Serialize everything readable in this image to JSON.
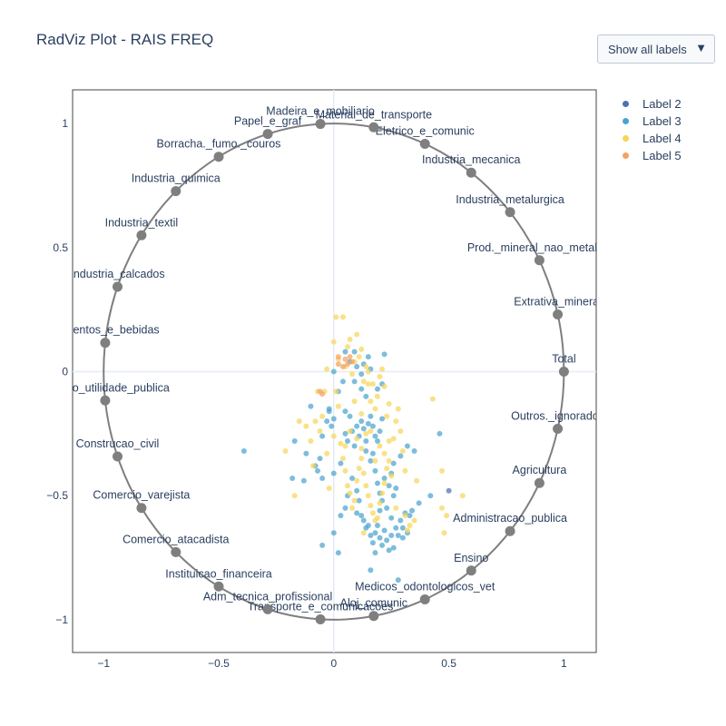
{
  "title": "RadViz Plot - RAIS FREQ",
  "dropdown": {
    "label": "Show all labels",
    "arrow": "▼"
  },
  "chart_data": {
    "type": "scatter",
    "title": "RadViz Plot - RAIS FREQ",
    "xlim": [
      -1.14,
      1.14
    ],
    "ylim": [
      -1.14,
      1.14
    ],
    "x_ticks": [
      -1,
      -0.5,
      0,
      0.5,
      1
    ],
    "y_ticks": [
      -1,
      -0.5,
      0,
      0.5,
      1
    ],
    "x_tick_labels": [
      "−1",
      "−0.5",
      "0",
      "0.5",
      "1"
    ],
    "y_tick_labels": [
      "−1",
      "−0.5",
      "0",
      "0.5",
      "1"
    ],
    "grid": true,
    "legend_position": "top-right",
    "anchors": [
      {
        "name": "Total",
        "angle": 0
      },
      {
        "name": "Extrativa_mineral",
        "angle": 13.33
      },
      {
        "name": "Prod._mineral_nao_metalico",
        "angle": 26.67
      },
      {
        "name": "Industria_metalurgica",
        "angle": 40
      },
      {
        "name": "Industria_mecanica",
        "angle": 53.33
      },
      {
        "name": "Eletrico_e_comunic",
        "angle": 66.67
      },
      {
        "name": "Material_de_transporte",
        "angle": 80
      },
      {
        "name": "Madeira_e_mobiliario",
        "angle": 93.33
      },
      {
        "name": "Papel_e_graf",
        "angle": 106.67
      },
      {
        "name": "Borracha._fumo._couros",
        "angle": 120
      },
      {
        "name": "Industria_quimica",
        "angle": 133.33
      },
      {
        "name": "Industria_textil",
        "angle": 146.67
      },
      {
        "name": "Industria_calcados",
        "angle": 160
      },
      {
        "name": "Alimentos_e_bebidas",
        "angle": 173.33
      },
      {
        "name": "Servico_utilidade_publica",
        "angle": 186.67
      },
      {
        "name": "Construcao_civil",
        "angle": 200
      },
      {
        "name": "Comercio_varejista",
        "angle": 213.33
      },
      {
        "name": "Comercio_atacadista",
        "angle": 226.67
      },
      {
        "name": "Instituicao_financeira",
        "angle": 240
      },
      {
        "name": "Adm_tecnica_profissional",
        "angle": 253.33
      },
      {
        "name": "Transporte_e_comunicacoes",
        "angle": 266.67
      },
      {
        "name": "Aloj_comunic",
        "angle": 280
      },
      {
        "name": "Medicos_odontologicos_vet",
        "angle": 293.33
      },
      {
        "name": "Ensino",
        "angle": 306.67
      },
      {
        "name": "Administracao_publica",
        "angle": 320
      },
      {
        "name": "Agricultura",
        "angle": 333.33
      },
      {
        "name": "Outros._ignorados",
        "angle": 346.67
      }
    ],
    "series": [
      {
        "name": "Label 2",
        "color": "#4c72b0",
        "points": [
          [
            0.5,
            -0.48
          ]
        ]
      },
      {
        "name": "Label 3",
        "color": "#4ba3cf",
        "points": [
          [
            -0.39,
            -0.32
          ],
          [
            -0.17,
            -0.28
          ],
          [
            -0.18,
            -0.43
          ],
          [
            -0.12,
            -0.33
          ],
          [
            -0.13,
            -0.44
          ],
          [
            -0.08,
            -0.38
          ],
          [
            -0.07,
            -0.4
          ],
          [
            -0.05,
            -0.43
          ],
          [
            -0.06,
            -0.35
          ],
          [
            -0.05,
            -0.26
          ],
          [
            -0.03,
            -0.2
          ],
          [
            -0.02,
            -0.15
          ],
          [
            -0.01,
            -0.22
          ],
          [
            0,
            -0.19
          ],
          [
            0.0,
            -0.0
          ],
          [
            0.02,
            -0.08
          ],
          [
            0.05,
            -0.16
          ],
          [
            0.05,
            -0.25
          ],
          [
            0.06,
            -0.28
          ],
          [
            0.07,
            -0.18
          ],
          [
            0.08,
            -0.24
          ],
          [
            0.09,
            -0.3
          ],
          [
            0.1,
            -0.22
          ],
          [
            0.11,
            -0.26
          ],
          [
            0.12,
            -0.2
          ],
          [
            0.13,
            -0.23
          ],
          [
            0.14,
            -0.28
          ],
          [
            0.15,
            -0.21
          ],
          [
            0.16,
            -0.18
          ],
          [
            0.17,
            -0.22
          ],
          [
            0.18,
            -0.26
          ],
          [
            0.19,
            -0.28
          ],
          [
            0.2,
            -0.24
          ],
          [
            0.21,
            -0.19
          ],
          [
            0.14,
            -0.32
          ],
          [
            0.16,
            -0.36
          ],
          [
            0.17,
            -0.33
          ],
          [
            0.18,
            -0.4
          ],
          [
            0.19,
            -0.45
          ],
          [
            0.2,
            -0.49
          ],
          [
            0.21,
            -0.52
          ],
          [
            0.22,
            -0.43
          ],
          [
            0.24,
            -0.46
          ],
          [
            0.25,
            -0.41
          ],
          [
            0.26,
            -0.37
          ],
          [
            0.27,
            -0.47
          ],
          [
            0.29,
            -0.34
          ],
          [
            0.32,
            -0.3
          ],
          [
            0.08,
            -0.43
          ],
          [
            0.1,
            -0.48
          ],
          [
            0.11,
            -0.52
          ],
          [
            0.12,
            -0.58
          ],
          [
            0.13,
            -0.6
          ],
          [
            0.14,
            -0.63
          ],
          [
            0.15,
            -0.62
          ],
          [
            0.16,
            -0.66
          ],
          [
            0.17,
            -0.69
          ],
          [
            0.18,
            -0.65
          ],
          [
            0.19,
            -0.62
          ],
          [
            0.2,
            -0.67
          ],
          [
            0.21,
            -0.7
          ],
          [
            0.22,
            -0.64
          ],
          [
            0.23,
            -0.68
          ],
          [
            0.24,
            -0.72
          ],
          [
            0.25,
            -0.66
          ],
          [
            0.26,
            -0.71
          ],
          [
            0.27,
            -0.63
          ],
          [
            0.28,
            -0.66
          ],
          [
            0.29,
            -0.6
          ],
          [
            0.3,
            -0.63
          ],
          [
            0.31,
            -0.57
          ],
          [
            0.33,
            -0.58
          ],
          [
            0.34,
            -0.56
          ],
          [
            0.32,
            -0.65
          ],
          [
            0.3,
            -0.67
          ],
          [
            0.28,
            -0.84
          ],
          [
            0.16,
            -0.8
          ],
          [
            0.02,
            -0.73
          ],
          [
            -0.05,
            -0.7
          ],
          [
            0.0,
            -0.65
          ],
          [
            0.03,
            -0.58
          ],
          [
            0.05,
            -0.55
          ],
          [
            0.06,
            -0.5
          ],
          [
            0.1,
            -0.57
          ],
          [
            0.05,
            0.08
          ],
          [
            0.07,
            0.04
          ],
          [
            0.09,
            0.08
          ],
          [
            0.1,
            0.02
          ],
          [
            0.12,
            -0.01
          ],
          [
            0.13,
            0.03
          ],
          [
            0.15,
            0.06
          ],
          [
            0.16,
            0.01
          ],
          [
            0.14,
            -0.1
          ],
          [
            0.12,
            -0.07
          ],
          [
            0.09,
            -0.04
          ],
          [
            0.19,
            -0.07
          ],
          [
            0.21,
            -0.05
          ],
          [
            0.22,
            0.07
          ],
          [
            0.04,
            -0.04
          ],
          [
            -0.02,
            -0.16
          ],
          [
            0.0,
            -0.41
          ],
          [
            0.03,
            -0.37
          ],
          [
            -0.1,
            -0.14
          ],
          [
            0.35,
            -0.32
          ],
          [
            0.46,
            -0.25
          ],
          [
            0.42,
            -0.5
          ],
          [
            0.37,
            -0.53
          ],
          [
            0.23,
            -0.55
          ],
          [
            0.25,
            -0.59
          ],
          [
            0.18,
            -0.73
          ],
          [
            0.2,
            -0.56
          ],
          [
            0.26,
            -0.5
          ]
        ]
      },
      {
        "name": "Label 4",
        "color": "#f7d55a",
        "points": [
          [
            -0.21,
            -0.32
          ],
          [
            -0.17,
            -0.5
          ],
          [
            -0.1,
            -0.28
          ],
          [
            -0.09,
            -0.38
          ],
          [
            -0.06,
            -0.24
          ],
          [
            -0.05,
            -0.18
          ],
          [
            -0.04,
            -0.08
          ],
          [
            -0.03,
            -0.33
          ],
          [
            -0.02,
            -0.47
          ],
          [
            0.0,
            0.12
          ],
          [
            0.02,
            0.05
          ],
          [
            0.04,
            0.22
          ],
          [
            0.05,
            0.02
          ],
          [
            0.06,
            0.1
          ],
          [
            0.07,
            0.13
          ],
          [
            0.08,
            -0.01
          ],
          [
            0.09,
            0.04
          ],
          [
            0.1,
            0.15
          ],
          [
            0.11,
            0.06
          ],
          [
            0.12,
            0.09
          ],
          [
            0.13,
            -0.04
          ],
          [
            0.14,
            0.02
          ],
          [
            0.15,
            0.0
          ],
          [
            0.16,
            -0.12
          ],
          [
            0.17,
            -0.05
          ],
          [
            0.18,
            -0.15
          ],
          [
            0.19,
            -0.1
          ],
          [
            0.2,
            -0.02
          ],
          [
            0.21,
            0.01
          ],
          [
            0.22,
            -0.06
          ],
          [
            0.23,
            -0.18
          ],
          [
            0.24,
            -0.13
          ],
          [
            0.01,
            -0.08
          ],
          [
            0.02,
            -0.14
          ],
          [
            0.03,
            -0.29
          ],
          [
            0.04,
            -0.35
          ],
          [
            0.05,
            -0.4
          ],
          [
            0.06,
            -0.46
          ],
          [
            0.07,
            -0.49
          ],
          [
            0.08,
            -0.55
          ],
          [
            0.09,
            -0.52
          ],
          [
            0.1,
            -0.44
          ],
          [
            0.11,
            -0.39
          ],
          [
            0.12,
            -0.35
          ],
          [
            0.13,
            -0.41
          ],
          [
            0.14,
            -0.46
          ],
          [
            0.15,
            -0.5
          ],
          [
            0.16,
            -0.54
          ],
          [
            0.17,
            -0.57
          ],
          [
            0.18,
            -0.6
          ],
          [
            0.19,
            -0.59
          ],
          [
            0.2,
            -0.53
          ],
          [
            0.21,
            -0.49
          ],
          [
            0.22,
            -0.45
          ],
          [
            0.23,
            -0.39
          ],
          [
            0.24,
            -0.36
          ],
          [
            0.25,
            -0.42
          ],
          [
            0.26,
            -0.27
          ],
          [
            0.27,
            -0.2
          ],
          [
            0.28,
            -0.15
          ],
          [
            0.29,
            -0.24
          ],
          [
            0.3,
            -0.32
          ],
          [
            0.31,
            -0.58
          ],
          [
            0.32,
            -0.64
          ],
          [
            0.33,
            -0.62
          ],
          [
            0.35,
            -0.6
          ],
          [
            0.43,
            -0.11
          ],
          [
            0.47,
            -0.4
          ],
          [
            0.47,
            -0.55
          ],
          [
            0.49,
            -0.58
          ],
          [
            0.56,
            -0.5
          ],
          [
            0.48,
            -0.65
          ],
          [
            -0.07,
            -0.08
          ],
          [
            -0.03,
            0.01
          ],
          [
            0.01,
            0.22
          ],
          [
            0.07,
            -0.24
          ],
          [
            0.12,
            -0.17
          ],
          [
            0.14,
            -0.25
          ],
          [
            0.2,
            -0.3
          ],
          [
            0.24,
            -0.28
          ],
          [
            0.31,
            -0.4
          ],
          [
            0.36,
            -0.44
          ],
          [
            -0.15,
            -0.2
          ],
          [
            -0.12,
            -0.22
          ],
          [
            -0.08,
            -0.2
          ],
          [
            0.0,
            -0.26
          ],
          [
            0.05,
            -0.3
          ],
          [
            0.09,
            -0.12
          ],
          [
            0.12,
            -0.31
          ],
          [
            0.16,
            -0.24
          ],
          [
            0.18,
            -0.36
          ],
          [
            0.22,
            -0.33
          ],
          [
            0.27,
            -0.55
          ],
          [
            0.13,
            -0.65
          ],
          [
            0.1,
            -0.27
          ],
          [
            0.15,
            -0.05
          ]
        ]
      },
      {
        "name": "Label 5",
        "color": "#f4a261",
        "points": [
          [
            -0.06,
            -0.08
          ],
          [
            -0.05,
            -0.09
          ],
          [
            0.02,
            0.03
          ],
          [
            0.02,
            0.06
          ],
          [
            0.04,
            0.02
          ],
          [
            0.05,
            0.05
          ],
          [
            0.06,
            0.03
          ],
          [
            0.07,
            0.06
          ],
          [
            0.08,
            0.04
          ]
        ]
      }
    ]
  }
}
